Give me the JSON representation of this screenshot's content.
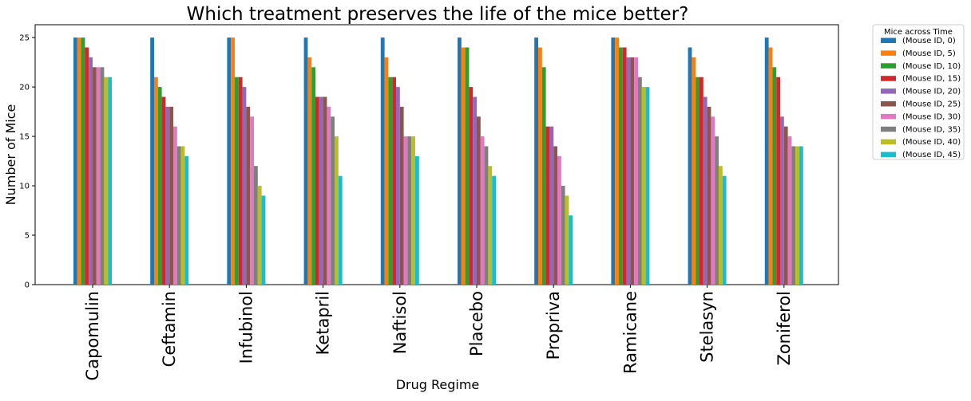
{
  "chart_data": {
    "type": "bar",
    "title": "Which treatment preserves the life of the mice better?",
    "xlabel": "Drug Regime",
    "ylabel": "Number of Mice",
    "ylim": [
      0,
      26.3
    ],
    "yticks": [
      0,
      5,
      10,
      15,
      20,
      25
    ],
    "grid": false,
    "legend": {
      "title": "Mice across Time",
      "placement": "outside-top-right"
    },
    "categories": [
      "Capomulin",
      "Ceftamin",
      "Infubinol",
      "Ketapril",
      "Naftisol",
      "Placebo",
      "Propriva",
      "Ramicane",
      "Stelasyn",
      "Zoniferol"
    ],
    "series": [
      {
        "name": "(Mouse ID, 0)",
        "color": "#1f77b4",
        "values": [
          25,
          25,
          25,
          25,
          25,
          25,
          25,
          25,
          24,
          25
        ]
      },
      {
        "name": "(Mouse ID, 5)",
        "color": "#ff7f0e",
        "values": [
          25,
          21,
          25,
          23,
          23,
          24,
          24,
          25,
          23,
          24
        ]
      },
      {
        "name": "(Mouse ID, 10)",
        "color": "#2ca02c",
        "values": [
          25,
          20,
          21,
          22,
          21,
          24,
          22,
          24,
          21,
          22
        ]
      },
      {
        "name": "(Mouse ID, 15)",
        "color": "#d62728",
        "values": [
          24,
          19,
          21,
          19,
          21,
          20,
          16,
          24,
          21,
          21
        ]
      },
      {
        "name": "(Mouse ID, 20)",
        "color": "#9467bd",
        "values": [
          23,
          18,
          20,
          19,
          20,
          19,
          16,
          23,
          19,
          17
        ]
      },
      {
        "name": "(Mouse ID, 25)",
        "color": "#8c564b",
        "values": [
          22,
          18,
          18,
          19,
          18,
          17,
          14,
          23,
          18,
          16
        ]
      },
      {
        "name": "(Mouse ID, 30)",
        "color": "#e377c2",
        "values": [
          22,
          16,
          17,
          18,
          15,
          15,
          13,
          23,
          17,
          15
        ]
      },
      {
        "name": "(Mouse ID, 35)",
        "color": "#7f7f7f",
        "values": [
          22,
          14,
          12,
          17,
          15,
          14,
          10,
          21,
          15,
          14
        ]
      },
      {
        "name": "(Mouse ID, 40)",
        "color": "#bcbd22",
        "values": [
          21,
          14,
          10,
          15,
          15,
          12,
          9,
          20,
          12,
          14
        ]
      },
      {
        "name": "(Mouse ID, 45)",
        "color": "#17becf",
        "values": [
          21,
          13,
          9,
          11,
          13,
          11,
          7,
          20,
          11,
          14
        ]
      }
    ]
  }
}
